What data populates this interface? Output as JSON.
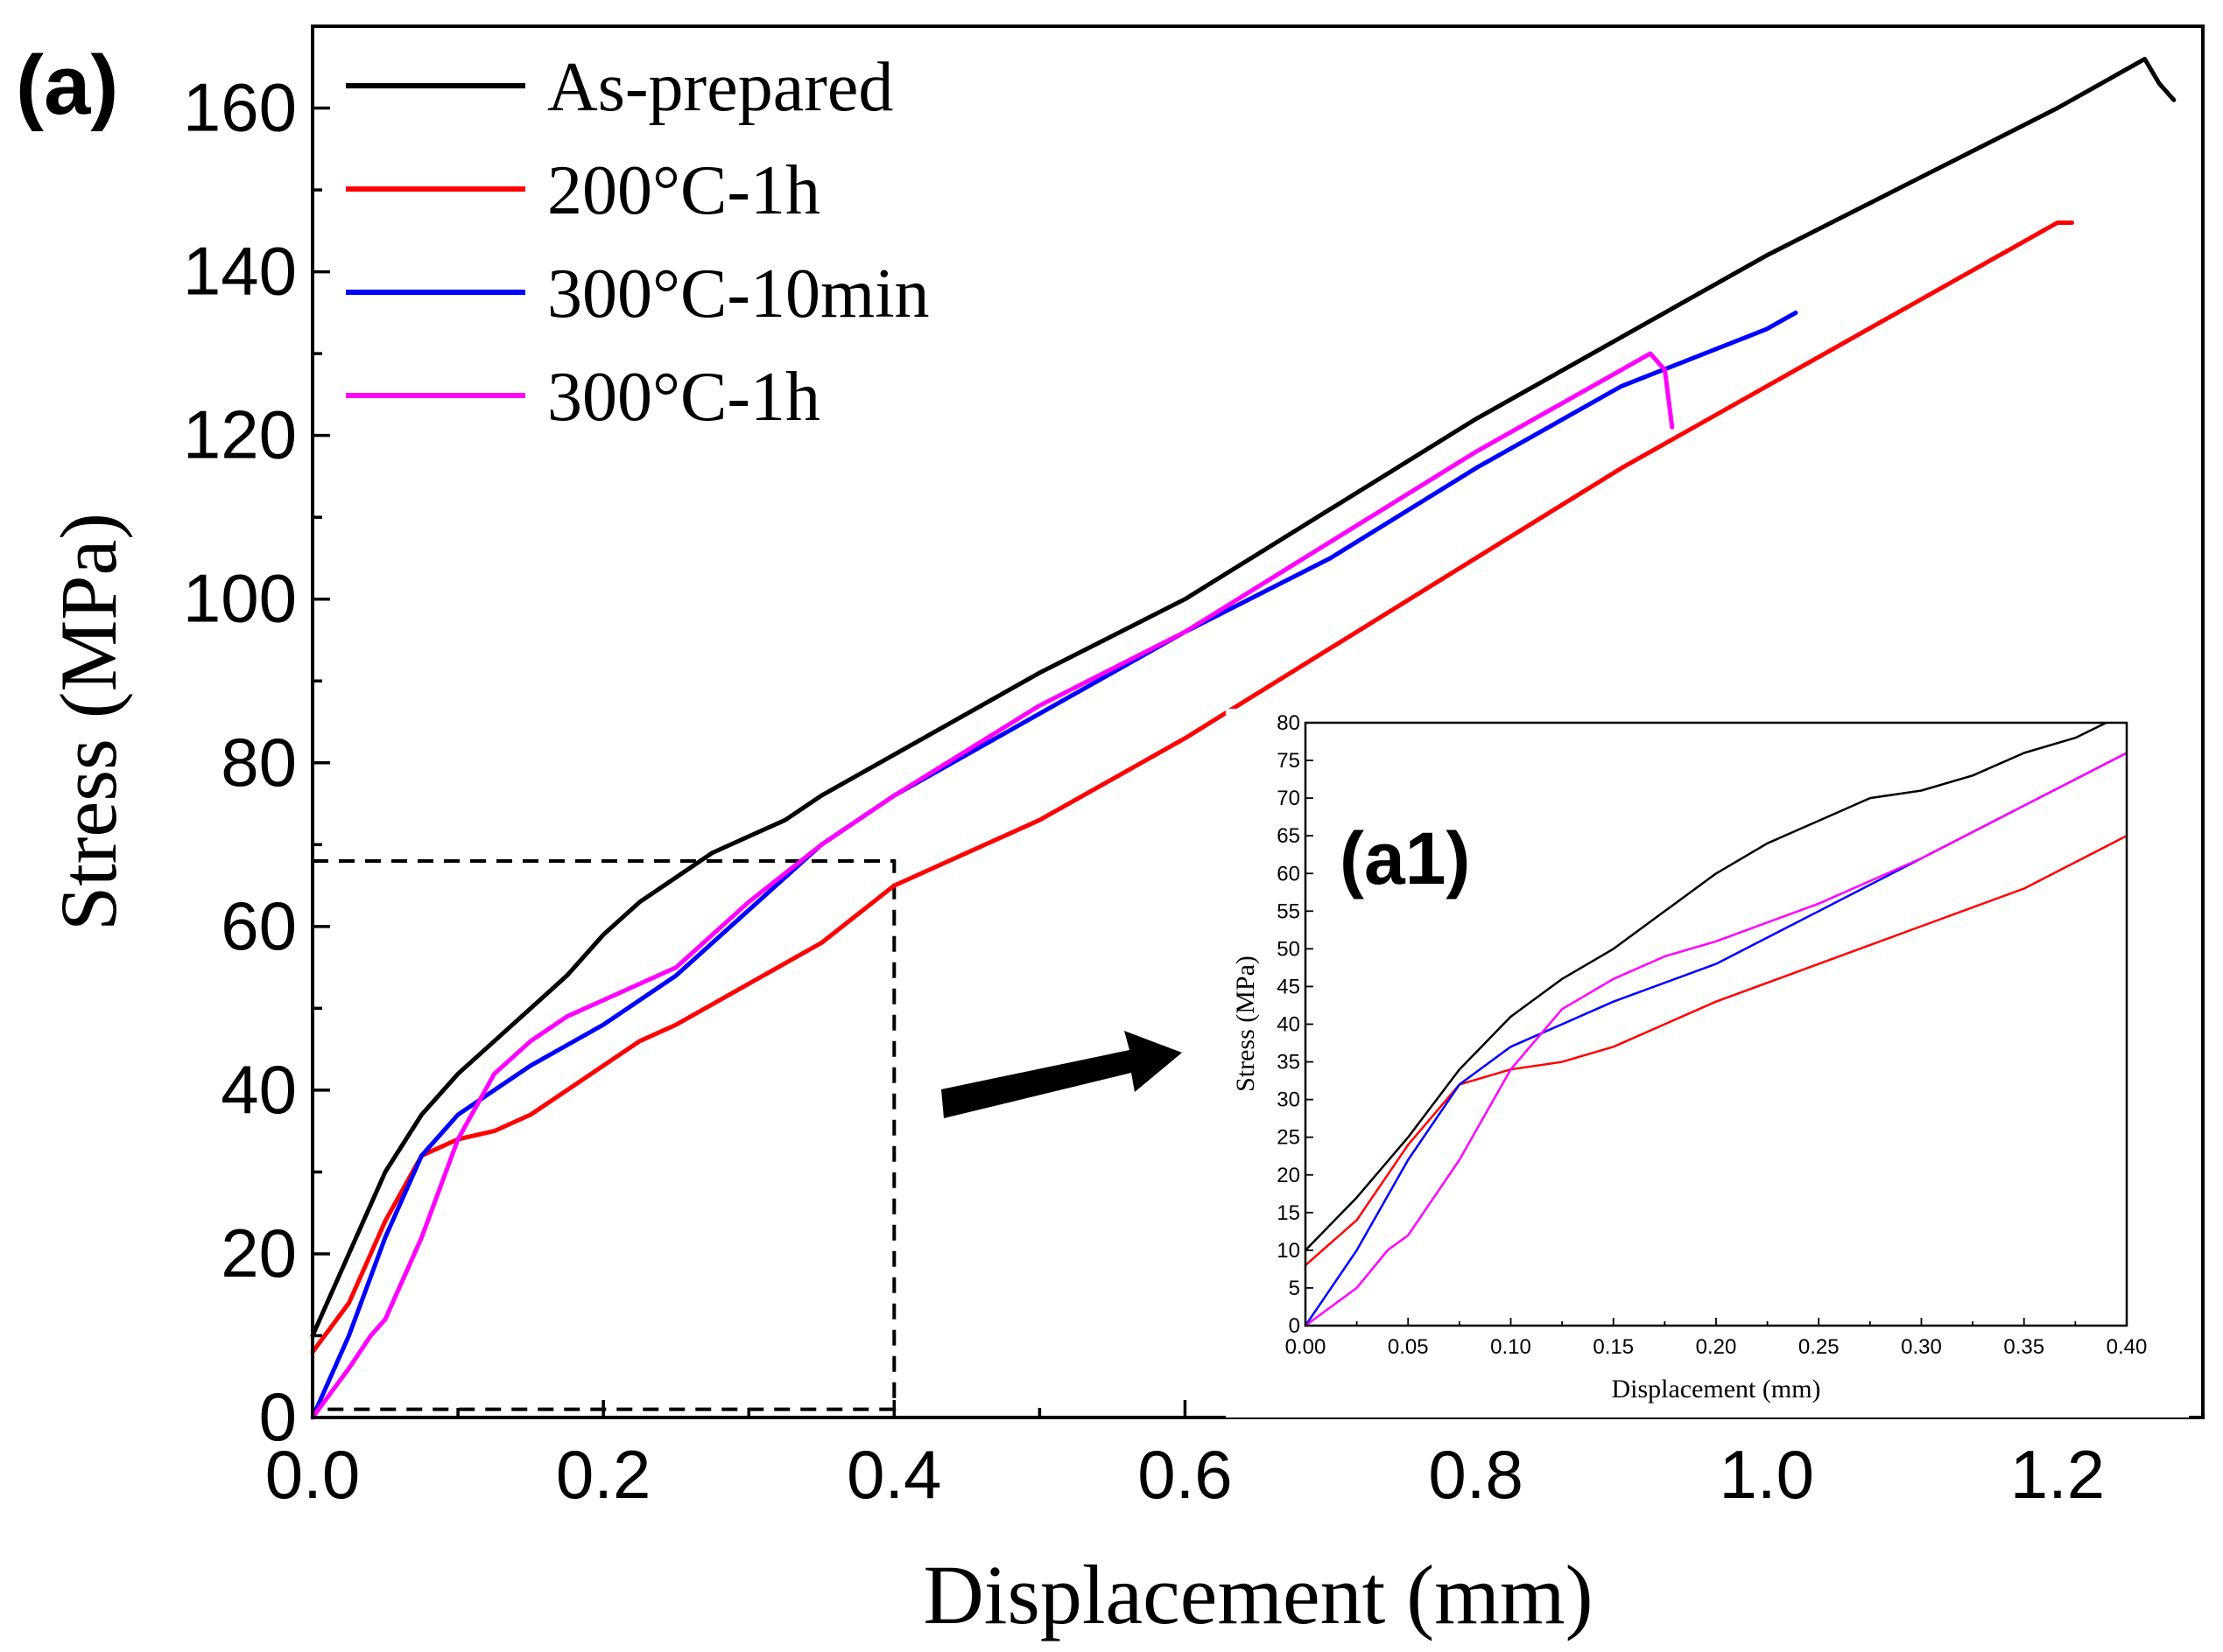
{
  "panel_labels": {
    "main": "(a)",
    "inset": "(a1)"
  },
  "chart_data": [
    {
      "type": "line",
      "name": "main",
      "xlabel": "Displacement (mm)",
      "ylabel": "Stress (MPa)",
      "xlim": [
        0,
        1.3
      ],
      "ylim": [
        0,
        170
      ],
      "xticks": [
        0.0,
        0.2,
        0.4,
        0.6,
        0.8,
        1.0,
        1.2
      ],
      "xtick_labels": [
        "0.0",
        "0.2",
        "0.4",
        "0.6",
        "0.8",
        "1.0",
        "1.2"
      ],
      "yticks": [
        0,
        20,
        40,
        60,
        80,
        100,
        120,
        140,
        160
      ],
      "ytick_labels": [
        "0",
        "20",
        "40",
        "60",
        "80",
        "100",
        "120",
        "140",
        "160"
      ],
      "legend_position": "top-left",
      "zoom_region": {
        "x": [
          0,
          0.4
        ],
        "y": [
          1,
          68
        ]
      },
      "series": [
        {
          "name": "As-prepared",
          "color": "#000000",
          "points": [
            [
              0,
              10
            ],
            [
              0.025,
              20
            ],
            [
              0.05,
              30
            ],
            [
              0.075,
              37
            ],
            [
              0.1,
              42
            ],
            [
              0.125,
              46
            ],
            [
              0.15,
              50
            ],
            [
              0.175,
              54
            ],
            [
              0.2,
              59
            ],
            [
              0.225,
              63
            ],
            [
              0.25,
              66
            ],
            [
              0.275,
              69
            ],
            [
              0.3,
              71
            ],
            [
              0.325,
              73
            ],
            [
              0.35,
              76
            ],
            [
              0.4,
              81
            ],
            [
              0.5,
              91
            ],
            [
              0.6,
              100
            ],
            [
              0.7,
              111
            ],
            [
              0.8,
              122
            ],
            [
              0.9,
              132
            ],
            [
              1.0,
              142
            ],
            [
              1.1,
              151
            ],
            [
              1.2,
              160
            ],
            [
              1.25,
              165
            ],
            [
              1.26,
              166
            ],
            [
              1.27,
              163
            ],
            [
              1.28,
              161
            ]
          ]
        },
        {
          "name": "200°C-1h",
          "color": "#ff0000",
          "points": [
            [
              0,
              8
            ],
            [
              0.025,
              14
            ],
            [
              0.05,
              24
            ],
            [
              0.075,
              32
            ],
            [
              0.1,
              34
            ],
            [
              0.125,
              35
            ],
            [
              0.15,
              37
            ],
            [
              0.175,
              40
            ],
            [
              0.2,
              43
            ],
            [
              0.225,
              46
            ],
            [
              0.25,
              48
            ],
            [
              0.3,
              53
            ],
            [
              0.35,
              58
            ],
            [
              0.4,
              65
            ],
            [
              0.5,
              73
            ],
            [
              0.6,
              83
            ],
            [
              0.7,
              94
            ],
            [
              0.8,
              105
            ],
            [
              0.9,
              116
            ],
            [
              1.0,
              126
            ],
            [
              1.1,
              136
            ],
            [
              1.2,
              146
            ],
            [
              1.21,
              146
            ]
          ]
        },
        {
          "name": "300°C-10min",
          "color": "#0000ff",
          "points": [
            [
              0,
              0
            ],
            [
              0.025,
              10
            ],
            [
              0.05,
              22
            ],
            [
              0.075,
              32
            ],
            [
              0.1,
              37
            ],
            [
              0.15,
              43
            ],
            [
              0.2,
              48
            ],
            [
              0.25,
              54
            ],
            [
              0.3,
              62
            ],
            [
              0.35,
              70
            ],
            [
              0.4,
              76
            ],
            [
              0.5,
              86
            ],
            [
              0.6,
              96
            ],
            [
              0.7,
              105
            ],
            [
              0.8,
              116
            ],
            [
              0.9,
              126
            ],
            [
              1.0,
              133
            ],
            [
              1.02,
              135
            ],
            [
              1.01,
              134
            ]
          ]
        },
        {
          "name": "300°C-1h",
          "color": "#ff00ff",
          "points": [
            [
              0,
              0
            ],
            [
              0.025,
              6
            ],
            [
              0.04,
              10
            ],
            [
              0.05,
              12
            ],
            [
              0.075,
              22
            ],
            [
              0.1,
              34
            ],
            [
              0.125,
              42
            ],
            [
              0.15,
              46
            ],
            [
              0.175,
              49
            ],
            [
              0.2,
              51
            ],
            [
              0.25,
              55
            ],
            [
              0.3,
              63
            ],
            [
              0.35,
              70
            ],
            [
              0.4,
              76
            ],
            [
              0.5,
              87
            ],
            [
              0.6,
              96
            ],
            [
              0.7,
              107
            ],
            [
              0.8,
              118
            ],
            [
              0.9,
              128
            ],
            [
              0.92,
              130
            ],
            [
              0.93,
              128
            ],
            [
              0.935,
              121
            ]
          ]
        }
      ]
    },
    {
      "type": "line",
      "name": "inset",
      "xlabel": "Displacement (mm)",
      "ylabel": "Stress (MPa)",
      "xlim": [
        0,
        0.4
      ],
      "ylim": [
        0,
        80
      ],
      "xticks": [
        0.0,
        0.05,
        0.1,
        0.15,
        0.2,
        0.25,
        0.3,
        0.35,
        0.4
      ],
      "xtick_labels": [
        "0.00",
        "0.05",
        "0.10",
        "0.15",
        "0.20",
        "0.25",
        "0.30",
        "0.35",
        "0.40"
      ],
      "yticks": [
        0,
        5,
        10,
        15,
        20,
        25,
        30,
        35,
        40,
        45,
        50,
        55,
        60,
        65,
        70,
        75,
        80
      ],
      "ytick_labels": [
        "0",
        "5",
        "10",
        "15",
        "20",
        "25",
        "30",
        "35",
        "40",
        "45",
        "50",
        "55",
        "60",
        "65",
        "70",
        "75",
        "80"
      ],
      "series": [
        {
          "name": "As-prepared",
          "color": "#000000",
          "points": [
            [
              0,
              10
            ],
            [
              0.025,
              17
            ],
            [
              0.05,
              25
            ],
            [
              0.075,
              34
            ],
            [
              0.1,
              41
            ],
            [
              0.125,
              46
            ],
            [
              0.15,
              50
            ],
            [
              0.175,
              55
            ],
            [
              0.2,
              60
            ],
            [
              0.225,
              64
            ],
            [
              0.25,
              67
            ],
            [
              0.275,
              70
            ],
            [
              0.3,
              71
            ],
            [
              0.325,
              73
            ],
            [
              0.35,
              76
            ],
            [
              0.375,
              78
            ],
            [
              0.39,
              80
            ]
          ]
        },
        {
          "name": "200°C-1h",
          "color": "#ff0000",
          "points": [
            [
              0,
              8
            ],
            [
              0.025,
              14
            ],
            [
              0.05,
              24
            ],
            [
              0.075,
              32
            ],
            [
              0.1,
              34
            ],
            [
              0.125,
              35
            ],
            [
              0.15,
              37
            ],
            [
              0.175,
              40
            ],
            [
              0.2,
              43
            ],
            [
              0.25,
              48
            ],
            [
              0.3,
              53
            ],
            [
              0.35,
              58
            ],
            [
              0.4,
              65
            ]
          ]
        },
        {
          "name": "300°C-10min",
          "color": "#0000ff",
          "points": [
            [
              0,
              0
            ],
            [
              0.025,
              10
            ],
            [
              0.05,
              22
            ],
            [
              0.075,
              32
            ],
            [
              0.1,
              37
            ],
            [
              0.15,
              43
            ],
            [
              0.2,
              48
            ],
            [
              0.25,
              55
            ],
            [
              0.3,
              62
            ],
            [
              0.35,
              69
            ],
            [
              0.4,
              76
            ]
          ]
        },
        {
          "name": "300°C-1h",
          "color": "#ff00ff",
          "points": [
            [
              0,
              0
            ],
            [
              0.025,
              5
            ],
            [
              0.04,
              10
            ],
            [
              0.05,
              12
            ],
            [
              0.075,
              22
            ],
            [
              0.1,
              34
            ],
            [
              0.125,
              42
            ],
            [
              0.15,
              46
            ],
            [
              0.175,
              49
            ],
            [
              0.2,
              51
            ],
            [
              0.25,
              56
            ],
            [
              0.3,
              62
            ],
            [
              0.35,
              69
            ],
            [
              0.4,
              76
            ]
          ]
        }
      ]
    }
  ]
}
